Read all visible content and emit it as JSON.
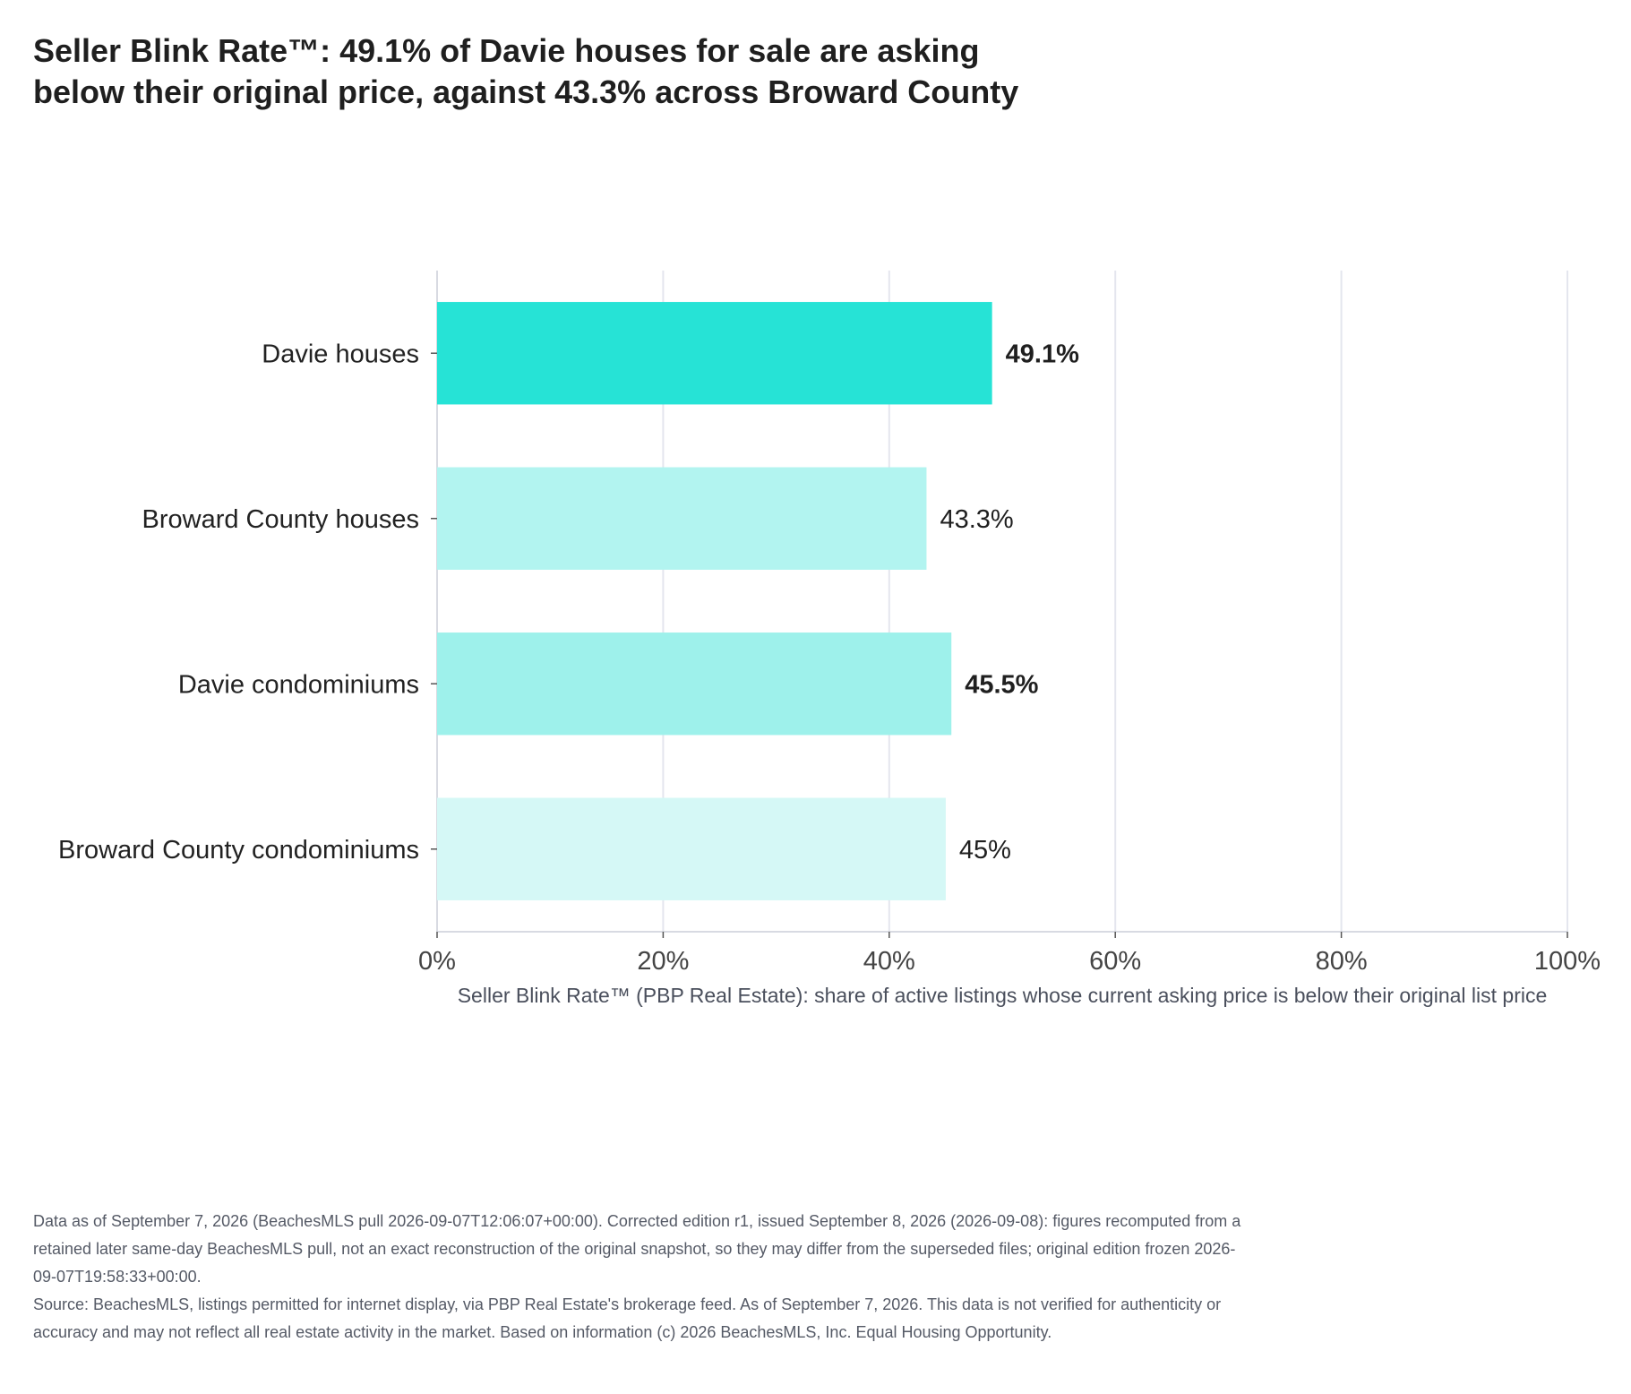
{
  "title_lines": [
    "Seller Blink Rate™: 49.1% of Davie houses for sale are asking",
    "below their original price, against 43.3% across Broward County"
  ],
  "footnotes": [
    "Data as of September 7, 2026 (BeachesMLS pull 2026-09-07T12:06:07+00:00). Corrected edition r1, issued September 8, 2026 (2026-09-08): figures recomputed from a retained later same-day BeachesMLS pull, not an exact reconstruction of the original snapshot, so they may differ from the superseded files; original edition frozen 2026-09-07T19:58:33+00:00.",
    "Source: BeachesMLS, listings permitted for internet display, via PBP Real Estate's brokerage feed. As of September 7, 2026. This data is not verified for authenticity or accuracy and may not reflect all real estate activity in the market. Based on information (c) 2026 BeachesMLS, Inc. Equal Housing Opportunity."
  ],
  "chart_data": {
    "type": "bar",
    "orientation": "horizontal",
    "categories": [
      "Davie houses",
      "Broward County houses",
      "Davie condominiums",
      "Broward County condominiums"
    ],
    "values": [
      49.1,
      43.3,
      45.5,
      45
    ],
    "value_labels": [
      "49.1%",
      "43.3%",
      "45.5%",
      "45%"
    ],
    "value_label_bold": [
      true,
      false,
      true,
      false
    ],
    "bar_colors": [
      "#26e3d6",
      "#b2f4f0",
      "#9ef1eb",
      "#d5f8f6"
    ],
    "xlabel": "Seller Blink Rate™ (PBP Real Estate): share of active listings whose current asking price is below their original list price",
    "ylabel": "",
    "xlim": [
      0,
      100
    ],
    "x_ticks": [
      0,
      20,
      40,
      60,
      80,
      100
    ],
    "x_tick_labels": [
      "0%",
      "20%",
      "40%",
      "60%",
      "80%",
      "100%"
    ],
    "grid": "vertical",
    "legend": "none"
  }
}
